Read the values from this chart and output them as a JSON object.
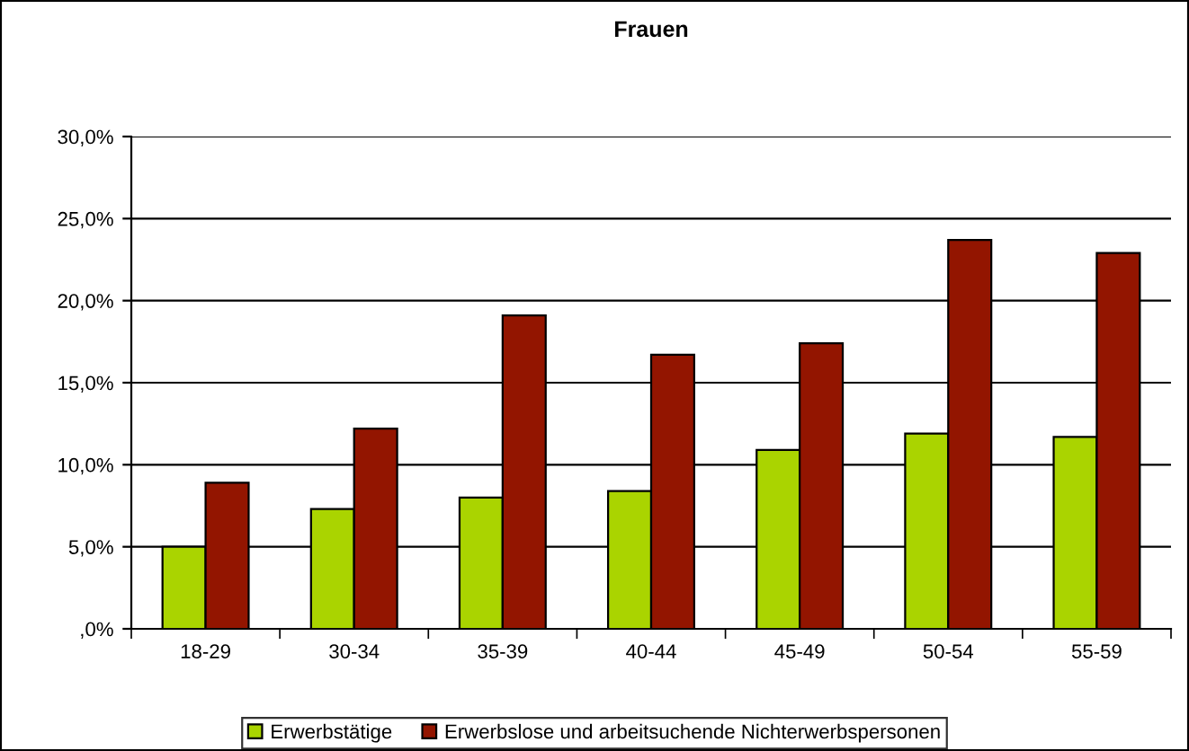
{
  "chart_data": {
    "type": "bar",
    "title": "Frauen",
    "categories": [
      "18-29",
      "30-34",
      "35-39",
      "40-44",
      "45-49",
      "50-54",
      "55-59"
    ],
    "series": [
      {
        "name": "Erwerbstätige",
        "color": "#aad400",
        "values": [
          5.0,
          7.3,
          8.0,
          8.4,
          10.9,
          11.9,
          11.7
        ]
      },
      {
        "name": "Erwerbslose und arbeitsuchende Nichterwerbspersonen",
        "color": "#931500",
        "values": [
          8.9,
          12.2,
          19.1,
          16.7,
          17.4,
          23.7,
          22.9
        ]
      }
    ],
    "ylim": [
      0,
      30
    ],
    "yticks": [
      {
        "value": 0,
        "label": ",0%"
      },
      {
        "value": 5,
        "label": "5,0%"
      },
      {
        "value": 10,
        "label": "10,0%"
      },
      {
        "value": 15,
        "label": "15,0%"
      },
      {
        "value": 20,
        "label": "20,0%"
      },
      {
        "value": 25,
        "label": "25,0%"
      },
      {
        "value": 30,
        "label": "30,0%"
      }
    ],
    "grid": "y",
    "legend": "bottom"
  }
}
